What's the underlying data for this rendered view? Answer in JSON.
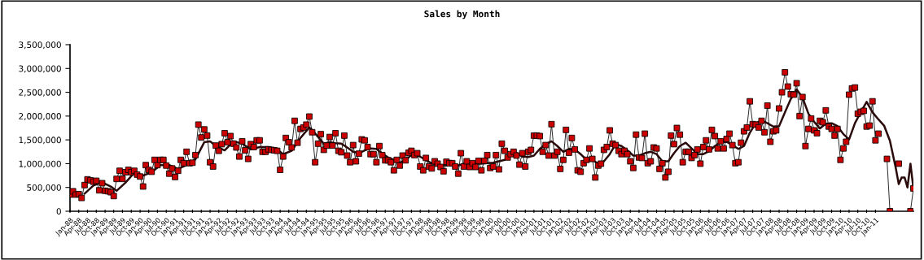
{
  "chart_data": {
    "type": "line",
    "title": "Sales by Month",
    "x": [
      "1988-01",
      "1988-02",
      "1988-03",
      "1988-04",
      "1988-05",
      "1988-06",
      "1988-07",
      "1988-08",
      "1988-09",
      "1988-10",
      "1988-11",
      "1988-12",
      "1989-01",
      "1989-02",
      "1989-03",
      "1989-04",
      "1989-05",
      "1989-06",
      "1989-07",
      "1989-08",
      "1989-09",
      "1989-10",
      "1989-11",
      "1989-12",
      "1990-01",
      "1990-02",
      "1990-03",
      "1990-04",
      "1990-05",
      "1990-06",
      "1990-07",
      "1990-08",
      "1990-09",
      "1990-10",
      "1990-11",
      "1990-12",
      "1991-01",
      "1991-02",
      "1991-03",
      "1991-04",
      "1991-05",
      "1991-06",
      "1991-07",
      "1991-08",
      "1991-09",
      "1991-10",
      "1991-11",
      "1991-12",
      "1992-01",
      "1992-02",
      "1992-03",
      "1992-04",
      "1992-05",
      "1992-06",
      "1992-07",
      "1992-08",
      "1992-09",
      "1992-10",
      "1992-11",
      "1992-12",
      "1993-01",
      "1993-02",
      "1993-03",
      "1993-04",
      "1993-05",
      "1993-06",
      "1993-07",
      "1993-08",
      "1993-09",
      "1993-10",
      "1993-11",
      "1993-12",
      "1994-01",
      "1994-02",
      "1994-03",
      "1994-04",
      "1994-05",
      "1994-06",
      "1994-07",
      "1994-08",
      "1994-09",
      "1994-10",
      "1994-11",
      "1994-12",
      "1995-01",
      "1995-02",
      "1995-03",
      "1995-04",
      "1995-05",
      "1995-06",
      "1995-07",
      "1995-08",
      "1995-09",
      "1995-10",
      "1995-11",
      "1995-12",
      "1996-01",
      "1996-02",
      "1996-03",
      "1996-04",
      "1996-05",
      "1996-06",
      "1996-07",
      "1996-08",
      "1996-09",
      "1996-10",
      "1996-11",
      "1996-12",
      "1997-01",
      "1997-02",
      "1997-03",
      "1997-04",
      "1997-05",
      "1997-06",
      "1997-07",
      "1997-08",
      "1997-09",
      "1997-10",
      "1997-11",
      "1997-12",
      "1998-01",
      "1998-02",
      "1998-03",
      "1998-04",
      "1998-05",
      "1998-06",
      "1998-07",
      "1998-08",
      "1998-09",
      "1998-10",
      "1998-11",
      "1998-12",
      "1999-01",
      "1999-02",
      "1999-03",
      "1999-04",
      "1999-05",
      "1999-06",
      "1999-07",
      "1999-08",
      "1999-09",
      "1999-10",
      "1999-11",
      "1999-12",
      "2000-01",
      "2000-02",
      "2000-03",
      "2000-04",
      "2000-05",
      "2000-06",
      "2000-07",
      "2000-08",
      "2000-09",
      "2000-10",
      "2000-11",
      "2000-12",
      "2001-01",
      "2001-02",
      "2001-03",
      "2001-04",
      "2001-05",
      "2001-06",
      "2001-07",
      "2001-08",
      "2001-09",
      "2001-10",
      "2001-11",
      "2001-12",
      "2002-01",
      "2002-02",
      "2002-03",
      "2002-04",
      "2002-05",
      "2002-06",
      "2002-07",
      "2002-08",
      "2002-09",
      "2002-10",
      "2002-11",
      "2002-12",
      "2003-01",
      "2003-02",
      "2003-03",
      "2003-04",
      "2003-05",
      "2003-06",
      "2003-07",
      "2003-08",
      "2003-09",
      "2003-10",
      "2003-11",
      "2003-12",
      "2004-01",
      "2004-02",
      "2004-03",
      "2004-04",
      "2004-05",
      "2004-06",
      "2004-07",
      "2004-08",
      "2004-09",
      "2004-10",
      "2004-11",
      "2004-12",
      "2005-01",
      "2005-02",
      "2005-03",
      "2005-04",
      "2005-05",
      "2005-06",
      "2005-07",
      "2005-08",
      "2005-09",
      "2005-10",
      "2005-11",
      "2005-12",
      "2006-01",
      "2006-02",
      "2006-03",
      "2006-04",
      "2006-05",
      "2006-06",
      "2006-07",
      "2006-08",
      "2006-09",
      "2006-10",
      "2006-11",
      "2006-12",
      "2007-01",
      "2007-02",
      "2007-03",
      "2007-04",
      "2007-05",
      "2007-06",
      "2007-07",
      "2007-08",
      "2007-09",
      "2007-10",
      "2007-11",
      "2007-12",
      "2008-01",
      "2008-02",
      "2008-03",
      "2008-04",
      "2008-05",
      "2008-06",
      "2008-07",
      "2008-08",
      "2008-09",
      "2008-10",
      "2008-11",
      "2008-12",
      "2009-01",
      "2009-02",
      "2009-03",
      "2009-04",
      "2009-05",
      "2009-06",
      "2009-07",
      "2009-08",
      "2009-09",
      "2009-10",
      "2009-11",
      "2009-12",
      "2010-01",
      "2010-02",
      "2010-03",
      "2010-04",
      "2010-05",
      "2010-06",
      "2010-07",
      "2010-08",
      "2010-09",
      "2010-10",
      "2010-11",
      "2010-12",
      "2011-01",
      "2011-02",
      "2011-03",
      "2011-04",
      "2011-05",
      "2011-06",
      "2011-07",
      "2011-08",
      "2011-09",
      "2011-10",
      "2011-11",
      "2011-12",
      "2012-01",
      "2012-02"
    ],
    "series": [
      {
        "color": "#cc0000",
        "marker": "square",
        "values": [
          350000,
          420000,
          350000,
          360000,
          280000,
          550000,
          670000,
          650000,
          620000,
          640000,
          440000,
          590000,
          430000,
          420000,
          400000,
          320000,
          680000,
          850000,
          680000,
          820000,
          870000,
          820000,
          850000,
          770000,
          730000,
          520000,
          970000,
          870000,
          830000,
          1080000,
          970000,
          1080000,
          1080000,
          960000,
          790000,
          900000,
          720000,
          850000,
          1080000,
          1010000,
          1250000,
          1010000,
          1020000,
          1180000,
          1820000,
          1550000,
          1720000,
          1590000,
          1030000,
          940000,
          1380000,
          1270000,
          1410000,
          1640000,
          1450000,
          1580000,
          1420000,
          1340000,
          1150000,
          1470000,
          1280000,
          1100000,
          1410000,
          1350000,
          1490000,
          1490000,
          1250000,
          1250000,
          1300000,
          1290000,
          1280000,
          1270000,
          870000,
          1150000,
          1540000,
          1450000,
          1340000,
          1900000,
          1440000,
          1730000,
          1760000,
          1820000,
          1990000,
          1660000,
          1030000,
          1420000,
          1620000,
          1290000,
          1380000,
          1560000,
          1380000,
          1640000,
          1270000,
          1240000,
          1590000,
          1170000,
          1030000,
          1390000,
          1050000,
          1210000,
          1510000,
          1490000,
          1350000,
          1200000,
          1200000,
          1030000,
          1370000,
          1180000,
          1070000,
          1070000,
          1030000,
          860000,
          1080000,
          960000,
          1170000,
          1070000,
          1230000,
          1270000,
          1180000,
          1220000,
          940000,
          860000,
          1120000,
          940000,
          900000,
          1050000,
          1000000,
          930000,
          840000,
          1040000,
          1010000,
          1010000,
          940000,
          790000,
          1220000,
          940000,
          1050000,
          930000,
          1010000,
          930000,
          1060000,
          860000,
          1060000,
          1180000,
          910000,
          940000,
          1180000,
          880000,
          1420000,
          1270000,
          1130000,
          1200000,
          1250000,
          1170000,
          980000,
          1220000,
          940000,
          1250000,
          1290000,
          1590000,
          1590000,
          1580000,
          1250000,
          1390000,
          1170000,
          1830000,
          1170000,
          1250000,
          890000,
          1080000,
          1710000,
          1230000,
          1540000,
          1300000,
          860000,
          830000,
          1010000,
          1080000,
          1320000,
          1100000,
          710000,
          960000,
          1000000,
          1290000,
          1350000,
          1700000,
          1420000,
          1390000,
          1270000,
          1200000,
          1270000,
          1200000,
          1050000,
          910000,
          1610000,
          1130000,
          1120000,
          1630000,
          1010000,
          1050000,
          1340000,
          1320000,
          890000,
          1010000,
          710000,
          830000,
          1590000,
          1410000,
          1750000,
          1610000,
          1030000,
          1250000,
          1250000,
          1120000,
          1180000,
          1300000,
          1000000,
          1350000,
          1490000,
          1300000,
          1710000,
          1580000,
          1320000,
          1470000,
          1320000,
          1520000,
          1630000,
          1390000,
          1010000,
          1030000,
          1440000,
          1680000,
          1760000,
          2310000,
          1830000,
          1820000,
          1760000,
          1900000,
          1660000,
          2220000,
          1460000,
          1680000,
          1700000,
          2160000,
          2500000,
          2920000,
          2620000,
          2460000,
          2450000,
          2690000,
          2000000,
          2400000,
          1370000,
          1730000,
          1950000,
          1700000,
          1640000,
          1900000,
          1870000,
          2120000,
          1780000,
          1730000,
          1590000,
          1730000,
          1080000,
          1320000,
          1460000,
          2450000,
          2580000,
          2600000,
          2050000,
          2090000,
          2110000,
          1780000,
          1800000,
          2310000,
          1490000,
          1630000,
          null,
          null,
          1100000,
          0,
          null,
          null,
          1000000,
          null,
          null,
          null,
          0,
          480000
        ]
      },
      {
        "type": "line",
        "color": "#2a0a0a",
        "marker": "none",
        "x": [
          "1988-06",
          "1988-09",
          "1988-12",
          "1989-03",
          "1989-05",
          "1989-08",
          "1989-11",
          "1990-02",
          "1990-05",
          "1990-08",
          "1990-11",
          "1991-02",
          "1991-05",
          "1991-08",
          "1991-11",
          "1992-01",
          "1992-03",
          "1992-06",
          "1992-09",
          "1992-12",
          "1993-03",
          "1993-06",
          "1993-09",
          "1993-12",
          "1994-02",
          "1994-05",
          "1994-08",
          "1994-11",
          "1994-12",
          "1995-02",
          "1995-04",
          "1995-06",
          "1995-08",
          "1995-10",
          "1995-12",
          "1996-02",
          "1996-04",
          "1996-06",
          "1996-08",
          "1996-10",
          "1996-12",
          "1997-02",
          "1997-04",
          "1997-06",
          "1997-08",
          "1997-10",
          "1997-12",
          "1998-02",
          "1998-04",
          "1998-06",
          "1998-08",
          "1998-10",
          "1998-12",
          "1999-02",
          "1999-04",
          "1999-06",
          "1999-08",
          "1999-10",
          "1999-12",
          "2000-02",
          "2000-04",
          "2000-06",
          "2000-08",
          "2000-10",
          "2000-12",
          "2001-02",
          "2001-04",
          "2001-06",
          "2001-08",
          "2001-10",
          "2001-12",
          "2002-02",
          "2002-04",
          "2002-06",
          "2002-08",
          "2002-10",
          "2002-12",
          "2003-02",
          "2003-04",
          "2003-06",
          "2003-08",
          "2003-10",
          "2003-12",
          "2004-02",
          "2004-04",
          "2004-06",
          "2004-08",
          "2004-10",
          "2004-12",
          "2005-02",
          "2005-04",
          "2005-06",
          "2005-08",
          "2005-10",
          "2005-12",
          "2006-02",
          "2006-04",
          "2006-06",
          "2006-08",
          "2006-10",
          "2006-12",
          "2007-02",
          "2007-04",
          "2007-06",
          "2007-08",
          "2007-10",
          "2007-12",
          "2008-02",
          "2008-04",
          "2008-06",
          "2008-08",
          "2008-10",
          "2008-12",
          "2009-02",
          "2009-04",
          "2009-06",
          "2009-08",
          "2009-10",
          "2009-12",
          "2010-02",
          "2010-04",
          "2010-06",
          "2010-08",
          "2010-10",
          "2010-12",
          "2011-02",
          "2011-04",
          "2011-06",
          "2011-08",
          "2011-09",
          "2011-10",
          "2011-11",
          "2011-12",
          "2012-01",
          "2012-02"
        ],
        "values": [
          370000,
          540000,
          610000,
          520000,
          430000,
          600000,
          810000,
          750000,
          820000,
          970000,
          970000,
          890000,
          970000,
          1090000,
          1450000,
          1470000,
          1370000,
          1280000,
          1470000,
          1420000,
          1300000,
          1350000,
          1350000,
          1300000,
          1200000,
          1270000,
          1540000,
          1760000,
          1710000,
          1560000,
          1420000,
          1450000,
          1430000,
          1420000,
          1340000,
          1250000,
          1220000,
          1280000,
          1320000,
          1310000,
          1210000,
          1130000,
          1080000,
          1020000,
          1080000,
          1180000,
          1180000,
          1110000,
          1040000,
          980000,
          970000,
          960000,
          1000000,
          960000,
          1000000,
          980000,
          1000000,
          1000000,
          1010000,
          1020000,
          1050000,
          1080000,
          1170000,
          1230000,
          1150000,
          1140000,
          1170000,
          1310000,
          1410000,
          1470000,
          1370000,
          1250000,
          1310000,
          1300000,
          1200000,
          1080000,
          1080000,
          1000000,
          1050000,
          1200000,
          1410000,
          1370000,
          1280000,
          1170000,
          1170000,
          1220000,
          1250000,
          1200000,
          1050000,
          1050000,
          1220000,
          1370000,
          1440000,
          1320000,
          1200000,
          1200000,
          1260000,
          1370000,
          1450000,
          1460000,
          1390000,
          1310000,
          1370000,
          1650000,
          1850000,
          1910000,
          1850000,
          1780000,
          1790000,
          2080000,
          2360000,
          2560000,
          2390000,
          2050000,
          1880000,
          1740000,
          1840000,
          1850000,
          1790000,
          1620000,
          1510000,
          1850000,
          2080000,
          2300000,
          2080000,
          1930000,
          1800000,
          1480000,
          910000,
          570000,
          710000,
          710000,
          500000,
          1000000,
          480000
        ]
      }
    ],
    "xlim": [
      "1988-01",
      "2012-02"
    ],
    "xticks": [
      {
        "value": "1988-01",
        "label": "Jan-88"
      },
      {
        "value": "1988-04",
        "label": "Apr-88"
      },
      {
        "value": "1988-07",
        "label": "Jul-88"
      },
      {
        "value": "1988-10",
        "label": "Oct-88"
      },
      {
        "value": "1989-01",
        "label": "Jan-89"
      },
      {
        "value": "1989-04",
        "label": "Apr-89"
      },
      {
        "value": "1989-07",
        "label": "Jul-89"
      },
      {
        "value": "1989-10",
        "label": "Oct-89"
      },
      {
        "value": "1990-01",
        "label": "Jan-90"
      },
      {
        "value": "1990-04",
        "label": "Apr-90"
      },
      {
        "value": "1990-07",
        "label": "Jul-90"
      },
      {
        "value": "1990-10",
        "label": "Oct-90"
      },
      {
        "value": "1991-01",
        "label": "Jan-91"
      },
      {
        "value": "1991-04",
        "label": "Apr-91"
      },
      {
        "value": "1991-07",
        "label": "Jul-91"
      },
      {
        "value": "1991-10",
        "label": "Oct-91"
      },
      {
        "value": "1992-01",
        "label": "Jan-92"
      },
      {
        "value": "1992-04",
        "label": "Apr-92"
      },
      {
        "value": "1992-07",
        "label": "Jul-92"
      },
      {
        "value": "1992-10",
        "label": "Oct-92"
      },
      {
        "value": "1993-01",
        "label": "Jan-93"
      },
      {
        "value": "1993-04",
        "label": "Apr-93"
      },
      {
        "value": "1993-07",
        "label": "Jul-93"
      },
      {
        "value": "1993-10",
        "label": "Oct-93"
      },
      {
        "value": "1994-01",
        "label": "Jan-94"
      },
      {
        "value": "1994-04",
        "label": "Apr-94"
      },
      {
        "value": "1994-07",
        "label": "Jul-94"
      },
      {
        "value": "1994-10",
        "label": "Oct-94"
      },
      {
        "value": "1995-01",
        "label": "Jan-95"
      },
      {
        "value": "1995-04",
        "label": "Apr-95"
      },
      {
        "value": "1995-07",
        "label": "Jul-95"
      },
      {
        "value": "1995-10",
        "label": "Oct-95"
      },
      {
        "value": "1996-01",
        "label": "Jan-96"
      },
      {
        "value": "1996-04",
        "label": "Apr-96"
      },
      {
        "value": "1996-07",
        "label": "Jul-96"
      },
      {
        "value": "1996-10",
        "label": "Oct-96"
      },
      {
        "value": "1997-01",
        "label": "Jan-97"
      },
      {
        "value": "1997-04",
        "label": "Apr-97"
      },
      {
        "value": "1997-07",
        "label": "Jul-97"
      },
      {
        "value": "1997-10",
        "label": "Oct-97"
      },
      {
        "value": "1998-01",
        "label": "Jan-98"
      },
      {
        "value": "1998-04",
        "label": "Apr-98"
      },
      {
        "value": "1998-07",
        "label": "Jul-98"
      },
      {
        "value": "1998-10",
        "label": "Oct-98"
      },
      {
        "value": "1999-01",
        "label": "Jan-99"
      },
      {
        "value": "1999-04",
        "label": "Apr-99"
      },
      {
        "value": "1999-07",
        "label": "Jul-99"
      },
      {
        "value": "1999-10",
        "label": "Oct-99"
      },
      {
        "value": "2000-01",
        "label": "Jan-00"
      },
      {
        "value": "2000-04",
        "label": "Apr-00"
      },
      {
        "value": "2000-07",
        "label": "Jul-00"
      },
      {
        "value": "2000-10",
        "label": "Oct-00"
      },
      {
        "value": "2001-01",
        "label": "Jan-01"
      },
      {
        "value": "2001-04",
        "label": "Apr-01"
      },
      {
        "value": "2001-07",
        "label": "Jul-01"
      },
      {
        "value": "2001-10",
        "label": "Oct-01"
      },
      {
        "value": "2002-01",
        "label": "Jan-02"
      },
      {
        "value": "2002-04",
        "label": "Apr-02"
      },
      {
        "value": "2002-07",
        "label": "Jul-02"
      },
      {
        "value": "2002-10",
        "label": "Oct-02"
      },
      {
        "value": "2003-01",
        "label": "Jan-03"
      },
      {
        "value": "2003-04",
        "label": "Apr-03"
      },
      {
        "value": "2003-07",
        "label": "Jul-03"
      },
      {
        "value": "2003-10",
        "label": "Oct-03"
      },
      {
        "value": "2004-01",
        "label": "Jan-04"
      },
      {
        "value": "2004-04",
        "label": "Apr-04"
      },
      {
        "value": "2004-07",
        "label": "Jul-04"
      },
      {
        "value": "2004-10",
        "label": "Oct-04"
      },
      {
        "value": "2005-01",
        "label": "Jan-05"
      },
      {
        "value": "2005-04",
        "label": "Apr-05"
      },
      {
        "value": "2005-07",
        "label": "Jul-05"
      },
      {
        "value": "2005-10",
        "label": "Oct-05"
      },
      {
        "value": "2006-01",
        "label": "Jan-06"
      },
      {
        "value": "2006-04",
        "label": "Apr-06"
      },
      {
        "value": "2006-07",
        "label": "Jul-06"
      },
      {
        "value": "2006-10",
        "label": "Oct-06"
      },
      {
        "value": "2007-01",
        "label": "Jan-07"
      },
      {
        "value": "2007-04",
        "label": "Apr-07"
      },
      {
        "value": "2007-07",
        "label": "Jul-07"
      },
      {
        "value": "2007-10",
        "label": "Oct-07"
      },
      {
        "value": "2008-01",
        "label": "Jan-08"
      },
      {
        "value": "2008-04",
        "label": "Apr-08"
      },
      {
        "value": "2008-07",
        "label": "Jul-08"
      },
      {
        "value": "2008-10",
        "label": "Oct-08"
      },
      {
        "value": "2009-01",
        "label": "Jan-09"
      },
      {
        "value": "2009-04",
        "label": "Apr-09"
      },
      {
        "value": "2009-07",
        "label": "Jul-09"
      },
      {
        "value": "2009-10",
        "label": "Oct-09"
      },
      {
        "value": "2010-01",
        "label": "Jan-10"
      },
      {
        "value": "2010-04",
        "label": "Apr-10"
      },
      {
        "value": "2010-07",
        "label": "Jul-10"
      },
      {
        "value": "2010-10",
        "label": "Oct-10"
      },
      {
        "value": "2011-01",
        "label": "Jan-11"
      }
    ],
    "ylim": [
      0,
      3500000
    ],
    "yticks": [
      0,
      {
        "value": 500000,
        "label": "500,000"
      },
      {
        "value": 1000000,
        "label": "1,000,000"
      },
      {
        "value": 1500000,
        "label": "1,500,000"
      },
      {
        "value": 2000000,
        "label": "2,000,000"
      },
      {
        "value": 2500000,
        "label": "2,500,000"
      },
      {
        "value": 3000000,
        "label": "3,000,000"
      },
      {
        "value": 3500000,
        "label": "3,500,000"
      }
    ],
    "grid": false
  }
}
